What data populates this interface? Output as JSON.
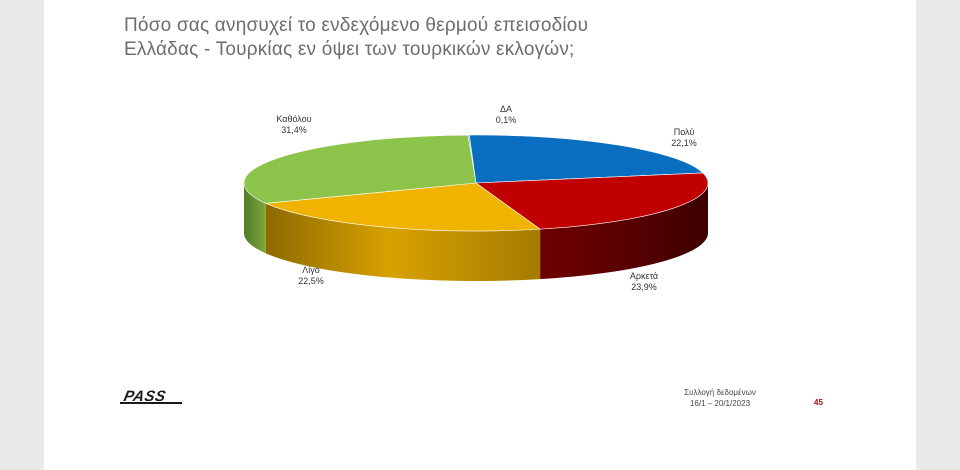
{
  "title_lines": [
    "Πόσο σας ανησυχεί το ενδεχόμενο θερμού επεισοδίου",
    "Ελλάδας - Τουρκίας εν όψει των τουρκικών εκλογών;"
  ],
  "chart_data": {
    "type": "pie",
    "title": "Πόσο σας ανησυχεί το ενδεχόμενο θερμού επεισοδίου Ελλάδας - Τουρκίας εν όψει των τουρκικών εκλογών;",
    "slices": [
      {
        "key": "da",
        "label": "ΔΑ",
        "value": 0.1,
        "value_label": "0,1%",
        "color": "#5b8fd6"
      },
      {
        "key": "poly",
        "label": "Πολύ",
        "value": 22.1,
        "value_label": "22,1%",
        "color": "#0a6ec0"
      },
      {
        "key": "arketa",
        "label": "Αρκετά",
        "value": 23.9,
        "value_label": "23,9%",
        "color": "#c00000"
      },
      {
        "key": "ligo",
        "label": "Λίγο",
        "value": 22.5,
        "value_label": "22,5%",
        "color": "#f0b400"
      },
      {
        "key": "katholou",
        "label": "Καθόλου",
        "value": 31.4,
        "value_label": "31,4%",
        "color": "#8cc34a"
      }
    ],
    "legend": "none",
    "style": "3d-tilted"
  },
  "footer": {
    "logo": "PASS",
    "source_line1": "Συλλογή δεδομένων",
    "source_line2": "16/1 – 20/1/2023",
    "page_number": "45"
  }
}
